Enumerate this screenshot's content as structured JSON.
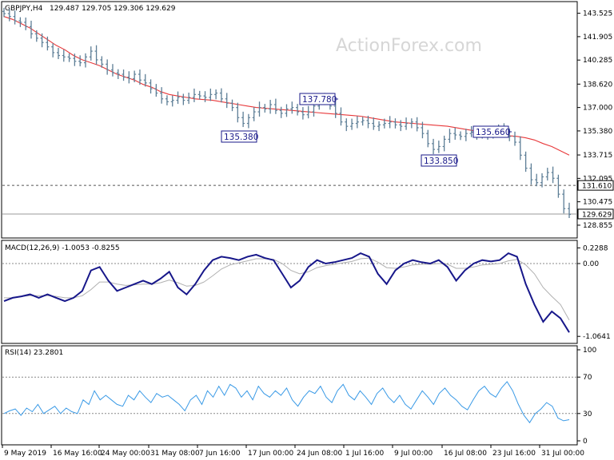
{
  "header": {
    "symbol": "GBPJPY,H4",
    "ohlc": "129.487 129.705 129.306 129.629"
  },
  "watermark": "ActionForex.com",
  "colors": {
    "bars": "#5d7e96",
    "sma": "#e8383a",
    "macd": "#17178a",
    "signal": "#b0b0b0",
    "rsi": "#3a9ae6",
    "label_border": "#1a1a8a"
  },
  "price_axis": {
    "ticks": [
      "143.525",
      "141.905",
      "140.285",
      "138.620",
      "137.000",
      "135.380",
      "133.715",
      "132.095",
      "130.475",
      "128.855"
    ],
    "markers": [
      {
        "label": "131.610",
        "style": "dashed",
        "fill": "#ffffff"
      },
      {
        "label": "129.629",
        "style": "solid",
        "fill": "#ffffff"
      }
    ]
  },
  "swing_labels": [
    {
      "text": "137.780"
    },
    {
      "text": "135.380"
    },
    {
      "text": "133.850"
    },
    {
      "text": "135.660"
    }
  ],
  "macd": {
    "header": "MACD(12,26,9) -1.0053 -0.8255",
    "ticks": [
      "0.2288",
      "0.00",
      "-1.0641"
    ]
  },
  "rsi": {
    "header": "RSI(14) 23.2801",
    "ticks": [
      "100",
      "70",
      "30",
      "0"
    ]
  },
  "x_axis": {
    "labels": [
      "9 May 2019",
      "16 May 16:00",
      "24 May 00:00",
      "31 May 08:00",
      "7 Jun 16:00",
      "17 Jun 00:00",
      "24 Jun 08:00",
      "1 Jul 16:00",
      "9 Jul 00:00",
      "16 Jul 08:00",
      "23 Jul 16:00",
      "31 Jul 00:00"
    ]
  },
  "chart_data": {
    "type": "line",
    "title": "GBPJPY,H4",
    "price": {
      "ylim": [
        128.3,
        144.0
      ],
      "close": [
        143.5,
        143.3,
        143.0,
        142.9,
        142.6,
        142.1,
        141.8,
        141.5,
        141.2,
        140.8,
        140.6,
        140.5,
        140.4,
        140.2,
        140.1,
        140.5,
        140.9,
        140.3,
        140.0,
        139.6,
        139.4,
        139.3,
        139.1,
        139.0,
        139.3,
        138.9,
        138.7,
        138.3,
        138.0,
        137.6,
        137.4,
        137.5,
        137.7,
        137.5,
        137.7,
        137.9,
        137.8,
        137.7,
        137.9,
        138.0,
        137.6,
        137.3,
        137.0,
        136.3,
        135.9,
        136.3,
        136.7,
        137.0,
        136.9,
        137.2,
        136.8,
        136.6,
        136.9,
        137.0,
        136.7,
        136.5,
        136.7,
        137.1,
        137.5,
        137.6,
        137.1,
        136.6,
        136.0,
        135.7,
        135.9,
        136.0,
        136.1,
        135.9,
        135.7,
        135.8,
        135.9,
        136.0,
        135.8,
        135.7,
        135.9,
        136.0,
        135.6,
        135.2,
        134.5,
        134.1,
        134.3,
        134.8,
        135.2,
        135.1,
        135.0,
        135.2,
        135.3,
        135.1,
        135.2,
        135.1,
        135.3,
        135.5,
        135.3,
        135.0,
        134.6,
        133.7,
        132.8,
        132.0,
        131.8,
        132.2,
        132.5,
        132.1,
        131.0,
        130.0,
        129.6
      ],
      "sma": [
        143.3,
        143.1,
        142.8,
        142.5,
        142.1,
        141.7,
        141.3,
        141.0,
        140.6,
        140.3,
        140.1,
        139.9,
        139.6,
        139.3,
        139.1,
        138.9,
        138.6,
        138.4,
        138.1,
        137.9,
        137.8,
        137.7,
        137.6,
        137.55,
        137.5,
        137.4,
        137.3,
        137.2,
        137.1,
        137.0,
        136.95,
        136.9,
        136.85,
        136.8,
        136.75,
        136.7,
        136.65,
        136.6,
        136.55,
        136.5,
        136.45,
        136.4,
        136.3,
        136.2,
        136.1,
        136.0,
        135.95,
        135.9,
        135.85,
        135.8,
        135.75,
        135.7,
        135.6,
        135.5,
        135.4,
        135.3,
        135.2,
        135.1,
        135.05,
        135.0,
        134.9,
        134.75,
        134.5,
        134.3,
        134.0,
        133.7
      ],
      "levels": {
        "dashed": 131.61,
        "solid": 129.629
      },
      "swings": {
        "high1": 137.78,
        "low1": 135.38,
        "low2": 133.85,
        "high2": 135.66
      }
    },
    "macd": {
      "ylim": [
        -1.12,
        0.28
      ],
      "macd": [
        -0.55,
        -0.5,
        -0.48,
        -0.45,
        -0.5,
        -0.45,
        -0.5,
        -0.55,
        -0.5,
        -0.4,
        -0.1,
        -0.05,
        -0.25,
        -0.4,
        -0.35,
        -0.3,
        -0.25,
        -0.3,
        -0.22,
        -0.12,
        -0.35,
        -0.45,
        -0.3,
        -0.1,
        0.05,
        0.1,
        0.08,
        0.05,
        0.1,
        0.13,
        0.08,
        0.05,
        -0.15,
        -0.35,
        -0.25,
        -0.05,
        0.05,
        0.0,
        0.02,
        0.05,
        0.08,
        0.15,
        0.1,
        -0.15,
        -0.3,
        -0.1,
        0.0,
        0.05,
        0.02,
        0.0,
        0.05,
        -0.05,
        -0.25,
        -0.1,
        0.0,
        0.05,
        0.03,
        0.05,
        0.15,
        0.1,
        -0.3,
        -0.6,
        -0.85,
        -0.7,
        -0.8,
        -1.0053
      ],
      "signal": [
        -0.5,
        -0.5,
        -0.48,
        -0.47,
        -0.47,
        -0.47,
        -0.48,
        -0.5,
        -0.5,
        -0.47,
        -0.38,
        -0.27,
        -0.27,
        -0.3,
        -0.32,
        -0.31,
        -0.3,
        -0.3,
        -0.28,
        -0.24,
        -0.28,
        -0.33,
        -0.32,
        -0.27,
        -0.18,
        -0.08,
        -0.02,
        0.01,
        0.04,
        0.07,
        0.07,
        0.06,
        0.0,
        -0.1,
        -0.15,
        -0.12,
        -0.06,
        -0.03,
        -0.01,
        0.01,
        0.03,
        0.07,
        0.08,
        0.02,
        -0.06,
        -0.07,
        -0.05,
        -0.02,
        -0.01,
        -0.01,
        0.0,
        -0.01,
        -0.07,
        -0.07,
        -0.05,
        -0.02,
        -0.01,
        0.0,
        0.04,
        0.06,
        -0.02,
        -0.15,
        -0.35,
        -0.48,
        -0.6,
        -0.8255
      ]
    },
    "rsi": {
      "ylim": [
        0,
        100
      ],
      "levels": [
        70,
        30
      ],
      "values": [
        30,
        33,
        35,
        28,
        36,
        32,
        40,
        30,
        34,
        38,
        30,
        36,
        32,
        30,
        45,
        40,
        55,
        45,
        50,
        45,
        40,
        38,
        50,
        45,
        55,
        48,
        42,
        52,
        48,
        50,
        45,
        40,
        33,
        45,
        50,
        40,
        55,
        48,
        60,
        50,
        62,
        58,
        48,
        55,
        45,
        60,
        52,
        48,
        55,
        50,
        58,
        45,
        38,
        48,
        55,
        52,
        60,
        48,
        42,
        55,
        62,
        50,
        45,
        55,
        48,
        40,
        52,
        58,
        48,
        42,
        50,
        40,
        35,
        45,
        55,
        48,
        40,
        52,
        58,
        50,
        45,
        38,
        34,
        45,
        55,
        60,
        52,
        48,
        58,
        65,
        55,
        40,
        28,
        20,
        30,
        35,
        42,
        38,
        25,
        22,
        23.28
      ]
    }
  }
}
